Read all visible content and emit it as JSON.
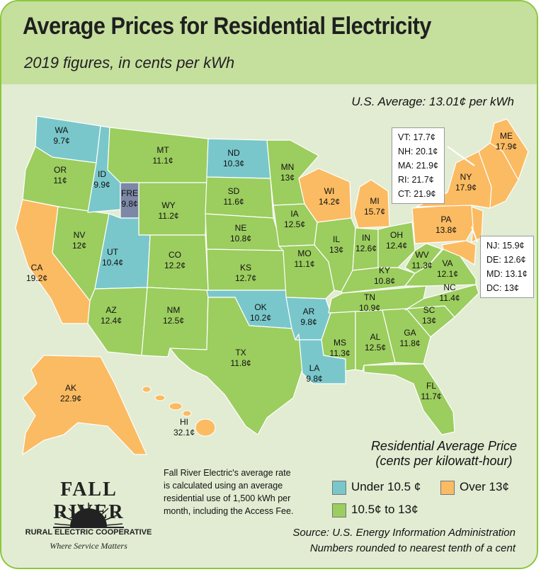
{
  "title": "Average Prices for Residential Electricity",
  "subtitle": "2019 figures, in cents per kWh",
  "us_average": "U.S. Average: 13.01¢ per kWh",
  "colors": {
    "low": "#79c7cb",
    "mid": "#9ccd5f",
    "high": "#fbbb62",
    "fre": "#7c88a6",
    "header": "#c5df9d",
    "background": "#e1ecd2"
  },
  "states": [
    {
      "name": "WA",
      "value": "9.7¢"
    },
    {
      "name": "OR",
      "value": "11¢"
    },
    {
      "name": "CA",
      "value": "19.2¢"
    },
    {
      "name": "ID",
      "value": "9.9¢"
    },
    {
      "name": "FRE",
      "value": "9.8¢"
    },
    {
      "name": "NV",
      "value": "12¢"
    },
    {
      "name": "MT",
      "value": "11.1¢"
    },
    {
      "name": "WY",
      "value": "11.2¢"
    },
    {
      "name": "UT",
      "value": "10.4¢"
    },
    {
      "name": "AZ",
      "value": "12.4¢"
    },
    {
      "name": "CO",
      "value": "12.2¢"
    },
    {
      "name": "NM",
      "value": "12.5¢"
    },
    {
      "name": "ND",
      "value": "10.3¢"
    },
    {
      "name": "SD",
      "value": "11.6¢"
    },
    {
      "name": "NE",
      "value": "10.8¢"
    },
    {
      "name": "KS",
      "value": "12.7¢"
    },
    {
      "name": "OK",
      "value": "10.2¢"
    },
    {
      "name": "TX",
      "value": "11.8¢"
    },
    {
      "name": "MN",
      "value": "13¢"
    },
    {
      "name": "IA",
      "value": "12.5¢"
    },
    {
      "name": "MO",
      "value": "11.1¢"
    },
    {
      "name": "AR",
      "value": "9.8¢"
    },
    {
      "name": "LA",
      "value": "9.8¢"
    },
    {
      "name": "WI",
      "value": "14.2¢"
    },
    {
      "name": "IL",
      "value": "13¢"
    },
    {
      "name": "MI",
      "value": "15.7¢"
    },
    {
      "name": "IN",
      "value": "12.6¢"
    },
    {
      "name": "OH",
      "value": "12.4¢"
    },
    {
      "name": "KY",
      "value": "10.8¢"
    },
    {
      "name": "TN",
      "value": "10.9¢"
    },
    {
      "name": "MS",
      "value": "11.3¢"
    },
    {
      "name": "AL",
      "value": "12.5¢"
    },
    {
      "name": "GA",
      "value": "11.8¢"
    },
    {
      "name": "FL",
      "value": "11.7¢"
    },
    {
      "name": "SC",
      "value": "13¢"
    },
    {
      "name": "NC",
      "value": "11.4¢"
    },
    {
      "name": "VA",
      "value": "12.1¢"
    },
    {
      "name": "WV",
      "value": "11.3¢"
    },
    {
      "name": "PA",
      "value": "13.8¢"
    },
    {
      "name": "NY",
      "value": "17.9¢"
    },
    {
      "name": "ME",
      "value": "17.9¢"
    },
    {
      "name": "AK",
      "value": "22.9¢"
    },
    {
      "name": "HI",
      "value": "32.1¢"
    }
  ],
  "callout_ne": [
    "VT: 17.7¢",
    "NH: 20.1¢",
    "MA: 21.9¢",
    "RI: 21.7¢",
    "CT: 21.9¢"
  ],
  "callout_ma": [
    "NJ: 15.9¢",
    "DE: 12.6¢",
    "MD: 13.1¢",
    "DC: 13¢"
  ],
  "legend": {
    "title": "Residential Average Price",
    "subtitle": "(cents per kilowatt-hour)",
    "low": "Under 10.5 ¢",
    "high": "Over 13¢",
    "mid": "10.5¢ to 13¢"
  },
  "note": "Fall River Electric's average rate is calculated using an average residential use of 1,500 kWh per month, including the Access Fee.",
  "source": "Source: U.S. Energy Information Administration",
  "rounding_note": "Numbers rounded to nearest tenth of a cent",
  "logo": {
    "name": "FALL RIVER",
    "subtitle": "RURAL ELECTRIC COOPERATIVE",
    "tagline": "Where Service Matters"
  }
}
